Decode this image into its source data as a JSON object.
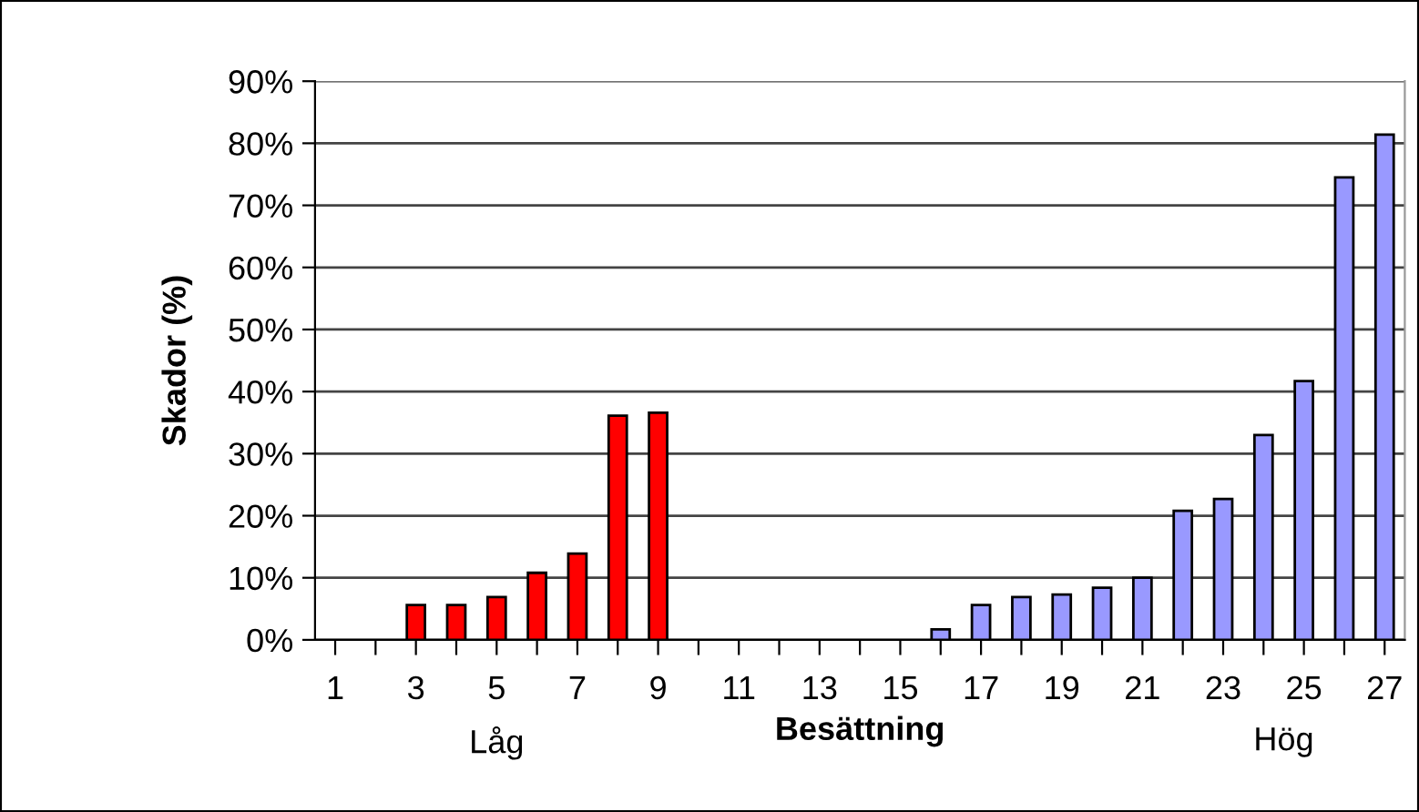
{
  "chart_data": {
    "type": "bar",
    "xlabel": "Besättning",
    "ylabel": "Skador (%)",
    "categories": [
      "1",
      null,
      "3",
      null,
      "5",
      null,
      "7",
      null,
      "9",
      null,
      "11",
      null,
      "13",
      null,
      "15",
      null,
      "17",
      null,
      "19",
      null,
      "21",
      null,
      "23",
      null,
      "25",
      null,
      "27"
    ],
    "values": [
      null,
      null,
      5.6,
      5.6,
      6.9,
      10.8,
      13.9,
      36.1,
      36.6,
      null,
      null,
      null,
      null,
      null,
      null,
      1.7,
      5.6,
      6.9,
      7.3,
      8.4,
      10.0,
      20.8,
      22.7,
      33.0,
      41.7,
      74.5,
      81.4
    ],
    "colors": [
      null,
      null,
      "#ff0000",
      "#ff0000",
      "#ff0000",
      "#ff0000",
      "#ff0000",
      "#ff0000",
      "#ff0000",
      null,
      null,
      null,
      null,
      null,
      null,
      "#9999ff",
      "#9999ff",
      "#9999ff",
      "#9999ff",
      "#9999ff",
      "#9999ff",
      "#9999ff",
      "#9999ff",
      "#9999ff",
      "#9999ff",
      "#9999ff",
      "#9999ff"
    ],
    "ylim": [
      0,
      90
    ],
    "yticks": [
      {
        "value": 0,
        "label": "0%"
      },
      {
        "value": 10,
        "label": "10%"
      },
      {
        "value": 20,
        "label": "20%"
      },
      {
        "value": 30,
        "label": "30%"
      },
      {
        "value": 40,
        "label": "40%"
      },
      {
        "value": 50,
        "label": "50%"
      },
      {
        "value": 60,
        "label": "60%"
      },
      {
        "value": 70,
        "label": "70%"
      },
      {
        "value": 80,
        "label": "80%"
      },
      {
        "value": 90,
        "label": "90%"
      }
    ],
    "grid": "y",
    "annotations": [
      "Låg",
      "Hög"
    ]
  }
}
